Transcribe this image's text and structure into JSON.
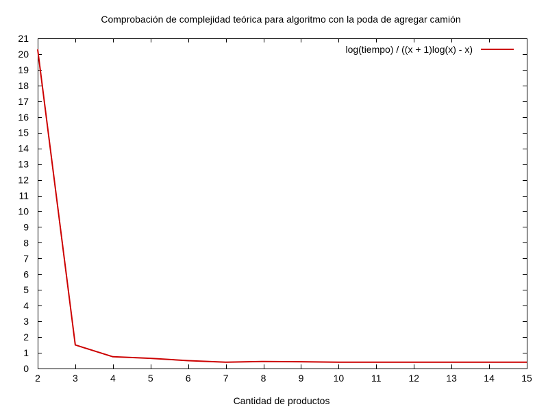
{
  "chart_data": {
    "type": "line",
    "title": "Comprobación de complejidad teórica para algoritmo con la poda de agregar camión",
    "xlabel": "Cantidad de productos",
    "ylabel": "",
    "xlim": [
      2,
      15
    ],
    "ylim": [
      0,
      21
    ],
    "x_ticks": [
      2,
      3,
      4,
      5,
      6,
      7,
      8,
      9,
      10,
      11,
      12,
      13,
      14,
      15
    ],
    "y_ticks": [
      0,
      1,
      2,
      3,
      4,
      5,
      6,
      7,
      8,
      9,
      10,
      11,
      12,
      13,
      14,
      15,
      16,
      17,
      18,
      19,
      20,
      21
    ],
    "grid": false,
    "legend_position": "top-right",
    "series": [
      {
        "name": "log(tiempo) / ((x + 1)log(x) - x)",
        "color": "#cc0000",
        "x": [
          2,
          3,
          4,
          5,
          6,
          7,
          8,
          9,
          10,
          11,
          12,
          13,
          14,
          15
        ],
        "y": [
          20.3,
          1.5,
          0.75,
          0.65,
          0.5,
          0.4,
          0.45,
          0.43,
          0.4,
          0.4,
          0.4,
          0.4,
          0.4,
          0.4
        ]
      }
    ]
  }
}
